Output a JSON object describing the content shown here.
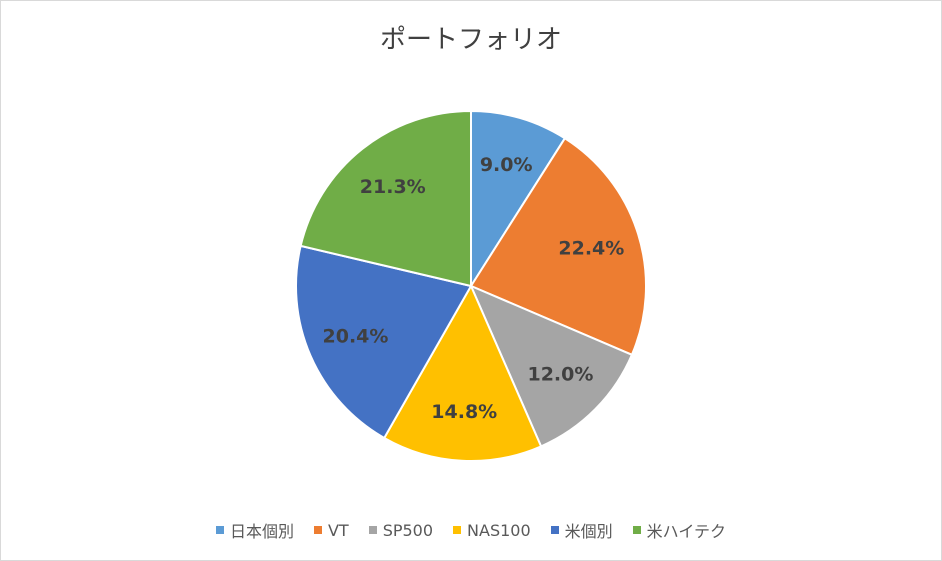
{
  "chart_data": {
    "type": "pie",
    "title": "ポートフォリオ",
    "categories": [
      "日本個別",
      "VT",
      "SP500",
      "NAS100",
      "米個別",
      "米ハイテク"
    ],
    "values": [
      9.0,
      22.4,
      12.0,
      14.8,
      20.4,
      21.3
    ],
    "data_labels": [
      "9.0%",
      "22.4%",
      "12.0%",
      "14.8%",
      "20.4%",
      "21.3%"
    ],
    "colors": [
      "#5b9bd5",
      "#ed7d31",
      "#a5a5a5",
      "#ffc000",
      "#4472c4",
      "#70ad47"
    ],
    "legend_position": "bottom"
  }
}
